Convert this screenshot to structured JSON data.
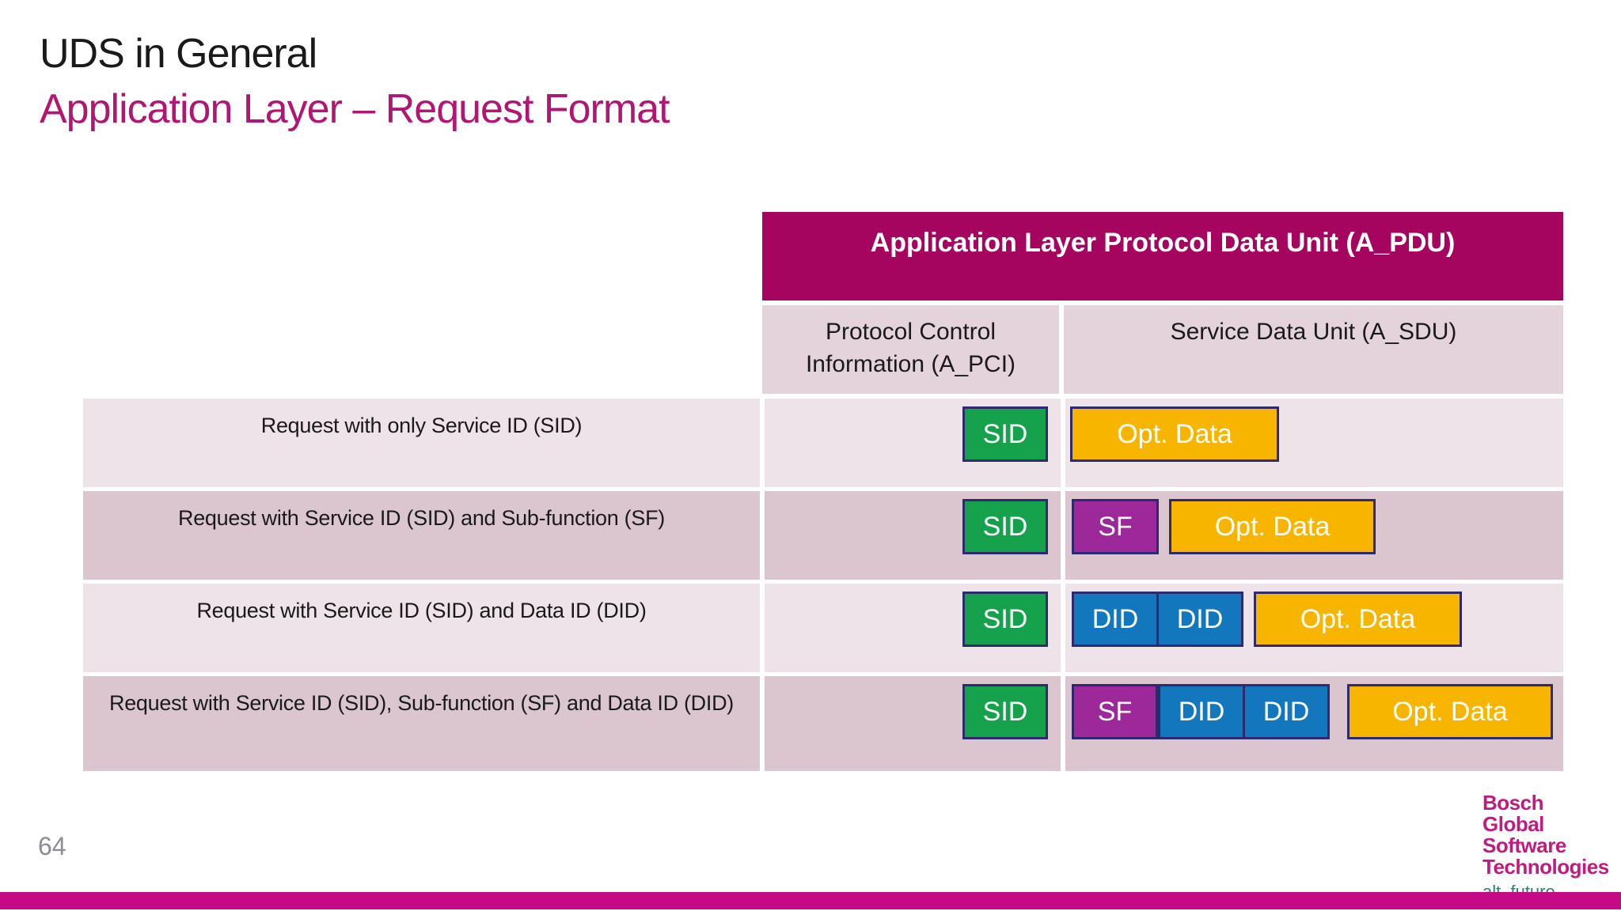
{
  "slide": {
    "title": "UDS in General",
    "subtitle": "Application Layer – Request Format",
    "page_number": "64"
  },
  "table": {
    "header": "Application Layer Protocol Data Unit (A_PDU)",
    "columns": {
      "pci": "Protocol Control Information (A_PCI)",
      "sdu": "Service Data Unit (A_SDU)"
    },
    "rows": [
      {
        "label": "Request with only Service ID (SID)",
        "pci_box": "SID",
        "sdu_boxes": {
          "opt": "Opt. Data"
        }
      },
      {
        "label": "Request with Service ID (SID) and Sub-function (SF)",
        "pci_box": "SID",
        "sdu_boxes": {
          "sf": "SF",
          "opt": "Opt. Data"
        }
      },
      {
        "label": "Request with Service ID (SID) and Data ID (DID)",
        "pci_box": "SID",
        "sdu_boxes": {
          "did1": "DID",
          "did2": "DID",
          "opt": "Opt. Data"
        }
      },
      {
        "label": "Request with Service ID (SID), Sub-function (SF) and Data ID (DID)",
        "pci_box": "SID",
        "sdu_boxes": {
          "sf": "SF",
          "did1": "DID",
          "did2": "DID",
          "opt": "Opt. Data"
        }
      }
    ]
  },
  "colors": {
    "header_magenta": "#a6055f",
    "subtitle_magenta": "#b11672",
    "row_light_pink": "#eee3e8",
    "row_dark_pink": "#dbc5ce",
    "subheader_pink": "#e4d3da",
    "sid_green": "#16a24d",
    "sf_purple": "#9c2899",
    "did_blue": "#1377bd",
    "opt_yellow": "#f7b500",
    "box_border": "#2e2a6d",
    "footer_bar_magenta": "#c40a84",
    "logo_magenta": "#c11b80",
    "logo_teal": "#1e837c"
  },
  "logo": {
    "lines": [
      "Bosch",
      "Global",
      "Software",
      "Technologies"
    ],
    "tagline": "alt_future"
  }
}
